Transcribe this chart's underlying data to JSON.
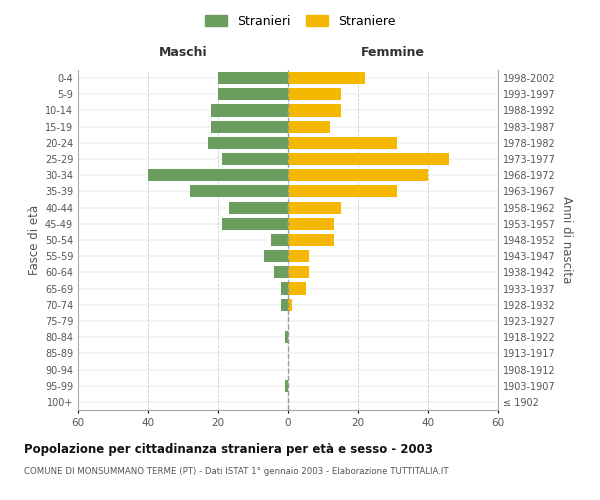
{
  "age_groups": [
    "100+",
    "95-99",
    "90-94",
    "85-89",
    "80-84",
    "75-79",
    "70-74",
    "65-69",
    "60-64",
    "55-59",
    "50-54",
    "45-49",
    "40-44",
    "35-39",
    "30-34",
    "25-29",
    "20-24",
    "15-19",
    "10-14",
    "5-9",
    "0-4"
  ],
  "birth_years": [
    "≤ 1902",
    "1903-1907",
    "1908-1912",
    "1913-1917",
    "1918-1922",
    "1923-1927",
    "1928-1932",
    "1933-1937",
    "1938-1942",
    "1943-1947",
    "1948-1952",
    "1953-1957",
    "1958-1962",
    "1963-1967",
    "1968-1972",
    "1973-1977",
    "1978-1982",
    "1983-1987",
    "1988-1992",
    "1993-1997",
    "1998-2002"
  ],
  "males": [
    0,
    1,
    0,
    0,
    1,
    0,
    2,
    2,
    4,
    7,
    5,
    19,
    17,
    28,
    40,
    19,
    23,
    22,
    22,
    20,
    20
  ],
  "females": [
    0,
    0,
    0,
    0,
    0,
    0,
    1,
    5,
    6,
    6,
    13,
    13,
    15,
    31,
    40,
    46,
    31,
    12,
    15,
    15,
    22
  ],
  "male_color": "#6b9e5e",
  "female_color": "#f5b800",
  "title": "Popolazione per cittadinanza straniera per età e sesso - 2003",
  "subtitle": "COMUNE DI MONSUMMANO TERME (PT) - Dati ISTAT 1° gennaio 2003 - Elaborazione TUTTITALIA.IT",
  "xlabel_left": "Maschi",
  "xlabel_right": "Femmine",
  "ylabel_left": "Fasce di età",
  "ylabel_right": "Anni di nascita",
  "legend_stranieri": "Stranieri",
  "legend_straniere": "Straniere",
  "xlim": 60,
  "grid_color": "#cccccc",
  "spine_color": "#aaaaaa"
}
